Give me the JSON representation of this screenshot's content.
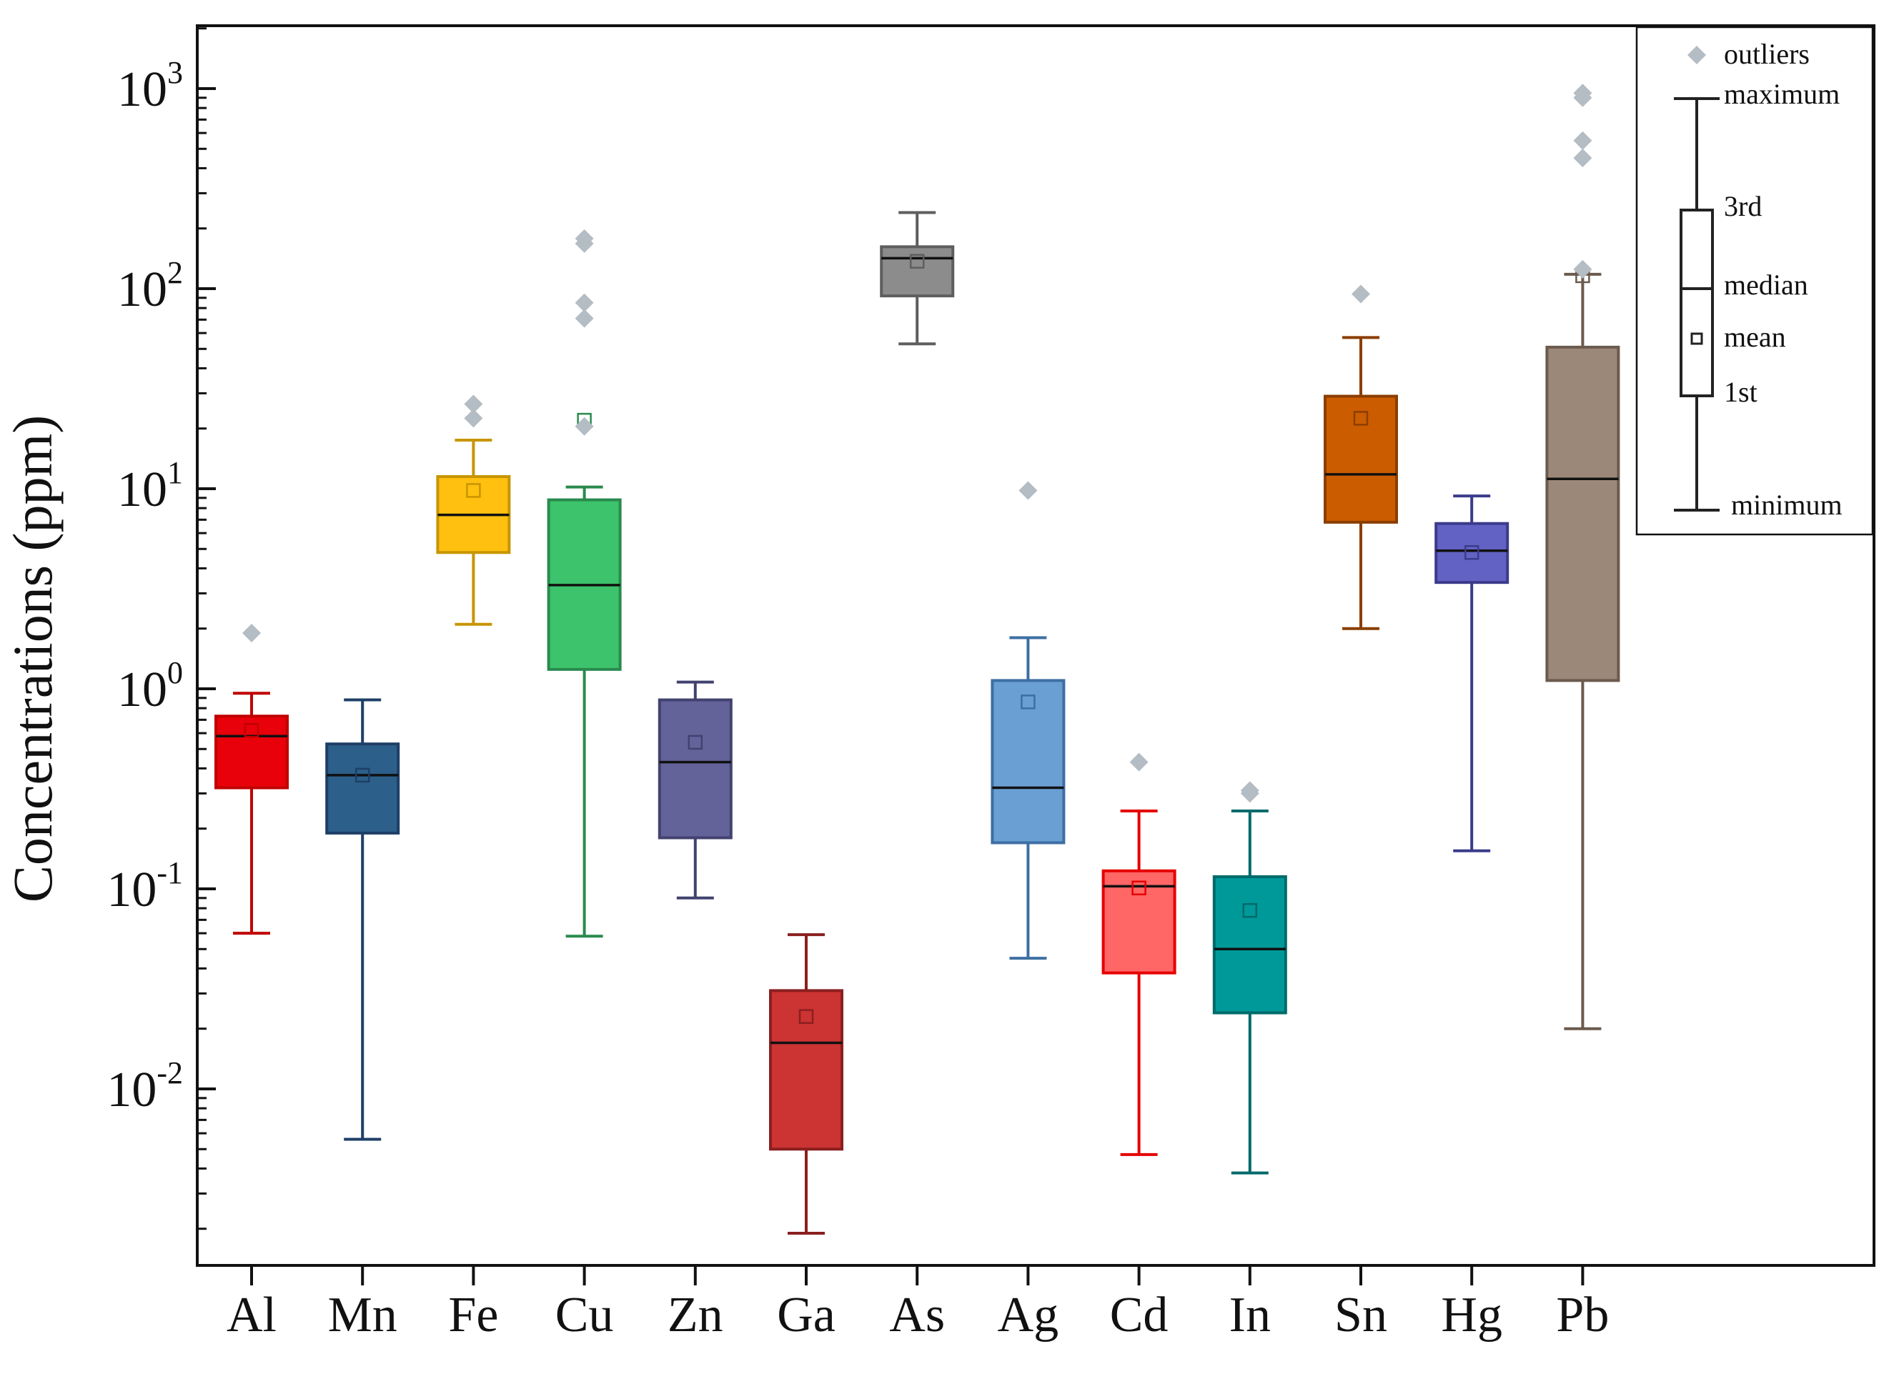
{
  "chart_data": {
    "type": "box",
    "ylabel": "Concentrations (ppm)",
    "yscale": "log",
    "ylim": [
      0.001,
      2000
    ],
    "y_tick_labels": [
      {
        "base": "10",
        "exp": "-2",
        "value": 0.01
      },
      {
        "base": "10",
        "exp": "-1",
        "value": 0.1
      },
      {
        "base": "10",
        "exp": "0",
        "value": 1
      },
      {
        "base": "10",
        "exp": "1",
        "value": 10
      },
      {
        "base": "10",
        "exp": "2",
        "value": 100
      },
      {
        "base": "10",
        "exp": "3",
        "value": 1000
      }
    ],
    "categories": [
      "Al",
      "Mn",
      "Fe",
      "Cu",
      "Zn",
      "Ga",
      "As",
      "Ag",
      "Cd",
      "In",
      "Sn",
      "Hg",
      "Pb"
    ],
    "boxes": [
      {
        "name": "Al",
        "min": 0.06,
        "q1": 0.32,
        "median": 0.58,
        "q3": 0.73,
        "max": 0.95,
        "mean": 0.62,
        "outliers": [
          1.9
        ],
        "fill": "#e8000b",
        "stroke": "#c00000"
      },
      {
        "name": "Mn",
        "min": 0.0056,
        "q1": 0.19,
        "median": 0.37,
        "q3": 0.53,
        "max": 0.88,
        "mean": 0.37,
        "outliers": [],
        "fill": "#2c5f8a",
        "stroke": "#1e3f66"
      },
      {
        "name": "Fe",
        "min": 2.1,
        "q1": 4.8,
        "median": 7.4,
        "q3": 11.5,
        "max": 17.5,
        "mean": 9.8,
        "outliers": [
          22.5,
          26.5
        ],
        "fill": "#ffc010",
        "stroke": "#c79500"
      },
      {
        "name": "Cu",
        "min": 0.058,
        "q1": 1.25,
        "median": 3.3,
        "q3": 8.8,
        "max": 10.2,
        "mean": 22,
        "outliers": [
          20.5,
          71,
          85,
          168,
          178
        ],
        "fill": "#3cc36b",
        "stroke": "#2a8a4e"
      },
      {
        "name": "Zn",
        "min": 0.09,
        "q1": 0.18,
        "median": 0.43,
        "q3": 0.88,
        "max": 1.08,
        "mean": 0.54,
        "outliers": [],
        "fill": "#63639a",
        "stroke": "#424270"
      },
      {
        "name": "Ga",
        "min": 0.0019,
        "q1": 0.005,
        "median": 0.017,
        "q3": 0.031,
        "max": 0.059,
        "mean": 0.023,
        "outliers": [],
        "fill": "#cc3333",
        "stroke": "#8b1f1f"
      },
      {
        "name": "As",
        "min": 53,
        "q1": 92,
        "median": 142,
        "q3": 162,
        "max": 240,
        "mean": 137,
        "outliers": [],
        "fill": "#8c8c8c",
        "stroke": "#5e5e5e"
      },
      {
        "name": "Ag",
        "min": 0.045,
        "q1": 0.17,
        "median": 0.32,
        "q3": 1.1,
        "max": 1.8,
        "mean": 0.86,
        "outliers": [
          9.8
        ],
        "fill": "#6a9fd4",
        "stroke": "#3d6fa3"
      },
      {
        "name": "Cd",
        "min": 0.0047,
        "q1": 0.038,
        "median": 0.103,
        "q3": 0.123,
        "max": 0.245,
        "mean": 0.101,
        "outliers": [
          0.43
        ],
        "fill": "#ff6666",
        "stroke": "#e60000"
      },
      {
        "name": "In",
        "min": 0.0038,
        "q1": 0.024,
        "median": 0.05,
        "q3": 0.115,
        "max": 0.245,
        "mean": 0.078,
        "outliers": [
          0.3,
          0.31
        ],
        "fill": "#009999",
        "stroke": "#006a6a"
      },
      {
        "name": "Sn",
        "min": 2.0,
        "q1": 6.8,
        "median": 11.8,
        "q3": 29,
        "max": 57,
        "mean": 22.5,
        "outliers": [
          94
        ],
        "fill": "#cc5c00",
        "stroke": "#8a3e00"
      },
      {
        "name": "Hg",
        "min": 0.155,
        "q1": 3.4,
        "median": 4.9,
        "q3": 6.7,
        "max": 9.2,
        "mean": 4.8,
        "outliers": [],
        "fill": "#6262c4",
        "stroke": "#3b3b8c"
      },
      {
        "name": "Pb",
        "min": 0.02,
        "q1": 1.1,
        "median": 11.2,
        "q3": 51,
        "max": 118,
        "mean": 116,
        "outliers": [
          125,
          450,
          550,
          900,
          950
        ],
        "fill": "#9c8878",
        "stroke": "#6b5a4d"
      }
    ],
    "legend": {
      "placement": "top-right",
      "outliers": "outliers",
      "maximum": "maximum",
      "third": "3rd",
      "median": "median",
      "mean": "mean",
      "first": "1st",
      "minimum": "minimum"
    },
    "colors": {
      "outlier": "#b4bcc4",
      "axis": "#111111"
    }
  }
}
